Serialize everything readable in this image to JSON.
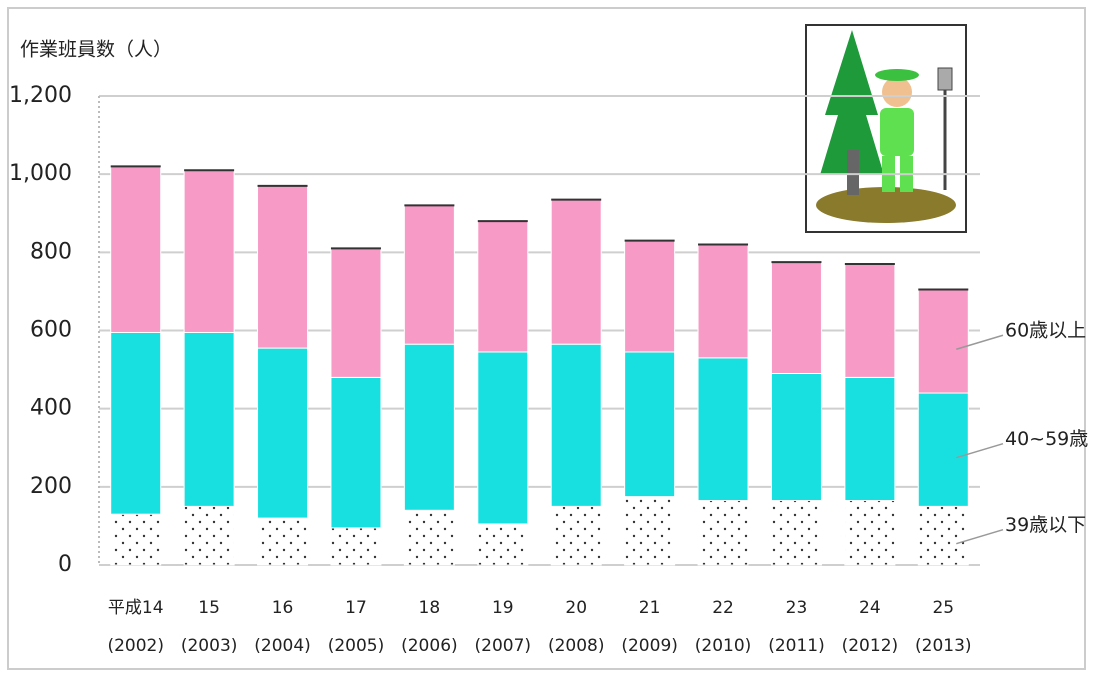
{
  "chart_data": {
    "type": "stacked_bar",
    "y_axis_label": "作業班員数（人）",
    "categories": [
      [
        "平成14",
        "(2002)"
      ],
      [
        "15",
        "(2003)"
      ],
      [
        "16",
        "(2004)"
      ],
      [
        "17",
        "(2005)"
      ],
      [
        "18",
        "(2006)"
      ],
      [
        "19",
        "(2007)"
      ],
      [
        "20",
        "(2008)"
      ],
      [
        "21",
        "(2009)"
      ],
      [
        "22",
        "(2010)"
      ],
      [
        "23",
        "(2011)"
      ],
      [
        "24",
        "(2012)"
      ],
      [
        "25",
        "(2013)"
      ]
    ],
    "series": [
      {
        "name": "39歳以下",
        "color": "#ffffff",
        "pattern": "dots",
        "values": [
          130,
          150,
          120,
          95,
          140,
          105,
          150,
          175,
          165,
          165,
          165,
          150
        ]
      },
      {
        "name": "40~59歳",
        "color": "#19e0e0",
        "values": [
          465,
          445,
          435,
          385,
          425,
          440,
          415,
          370,
          365,
          325,
          315,
          290
        ]
      },
      {
        "name": "60歳以上",
        "color": "#f79ac6",
        "values": [
          425,
          415,
          415,
          330,
          355,
          335,
          370,
          285,
          290,
          285,
          290,
          265
        ]
      }
    ],
    "ylim": [
      0,
      1200
    ],
    "yticks": [
      0,
      200,
      400,
      600,
      800,
      {
        "value": 1000,
        "label": "1,000"
      },
      {
        "value": 1200,
        "label": "1,200"
      }
    ],
    "grid": true
  }
}
